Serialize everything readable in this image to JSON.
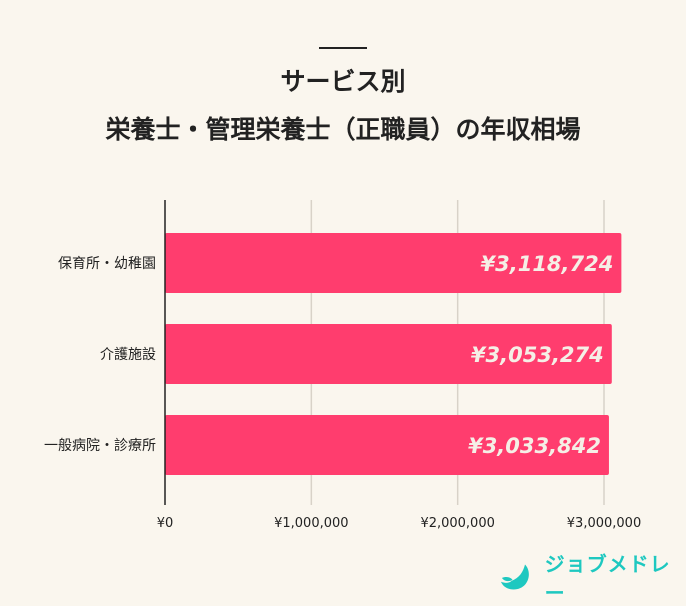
{
  "header": {
    "title_line1": "サービス別",
    "title_line2": "栄養士・管理栄養士（正職員）の年収相場"
  },
  "chart_data": {
    "type": "bar",
    "orientation": "horizontal",
    "title": "サービス別 栄養士・管理栄養士（正職員）の年収相場",
    "categories": [
      "保育所・幼稚園",
      "介護施設",
      "一般病院・診療所"
    ],
    "values": [
      3118724,
      3053274,
      3033842
    ],
    "data_labels": [
      "¥3,118,724",
      "¥3,053,274",
      "¥3,033,842"
    ],
    "x_ticks": [
      0,
      1000000,
      2000000,
      3000000
    ],
    "x_tick_labels": [
      "¥0",
      "¥1,000,000",
      "¥2,000,000",
      "¥3,000,000"
    ],
    "xlim": [
      0,
      3000000
    ],
    "grid": true,
    "bar_color": "#ff3d6e",
    "label_color": "#f5efe6",
    "xlabel": "",
    "ylabel": ""
  },
  "logo": {
    "text": "ジョブメドレー",
    "color": "#1ec8c0"
  }
}
